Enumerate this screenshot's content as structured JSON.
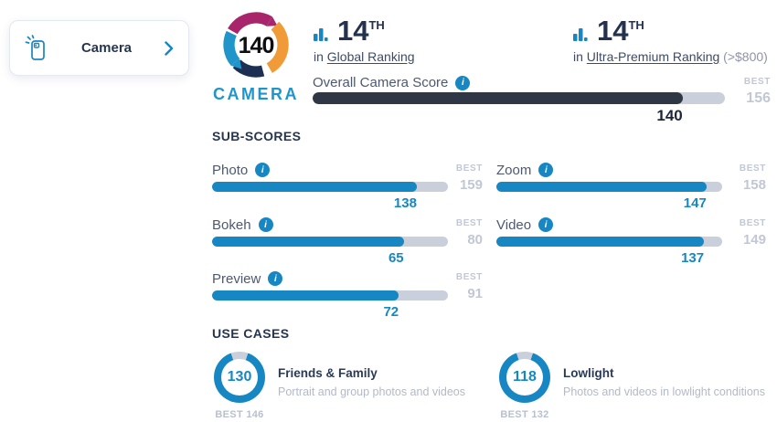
{
  "device_card": {
    "label": "Camera"
  },
  "logo": {
    "score": "140",
    "label": "CAMERA"
  },
  "rankings": [
    {
      "rank": "14",
      "suffix": "TH",
      "prefix": "in",
      "link": "Global Ranking",
      "extra": ""
    },
    {
      "rank": "14",
      "suffix": "TH",
      "prefix": "in",
      "link": "Ultra-Premium Ranking",
      "extra": "(>$800)"
    }
  ],
  "overall": {
    "label": "Overall Camera Score",
    "value": 140,
    "best": 156,
    "best_label": "BEST"
  },
  "sub_scores": {
    "heading": "SUB-SCORES",
    "best_label": "BEST",
    "items": [
      {
        "label": "Photo",
        "value": 138,
        "best": 159
      },
      {
        "label": "Zoom",
        "value": 147,
        "best": 158
      },
      {
        "label": "Bokeh",
        "value": 65,
        "best": 80
      },
      {
        "label": "Video",
        "value": 137,
        "best": 149
      },
      {
        "label": "Preview",
        "value": 72,
        "best": 91
      }
    ]
  },
  "use_cases": {
    "heading": "USE CASES",
    "items": [
      {
        "title": "Friends & Family",
        "description": "Portrait and group photos and videos",
        "value": 130,
        "best": 146,
        "best_label": "BEST 146"
      },
      {
        "title": "Lowlight",
        "description": "Photos and videos in lowlight conditions",
        "value": 118,
        "best": 132,
        "best_label": "BEST 132"
      }
    ]
  },
  "icons": {
    "info_glyph": "i"
  },
  "colors": {
    "accent_blue": "#1787c3",
    "dark_fill": "#2f3645",
    "track": "#c9cfdb",
    "logo_magenta": "#a8256c",
    "logo_orange": "#f09b38",
    "logo_navy": "#1d2f52",
    "logo_blue": "#2095c9"
  }
}
